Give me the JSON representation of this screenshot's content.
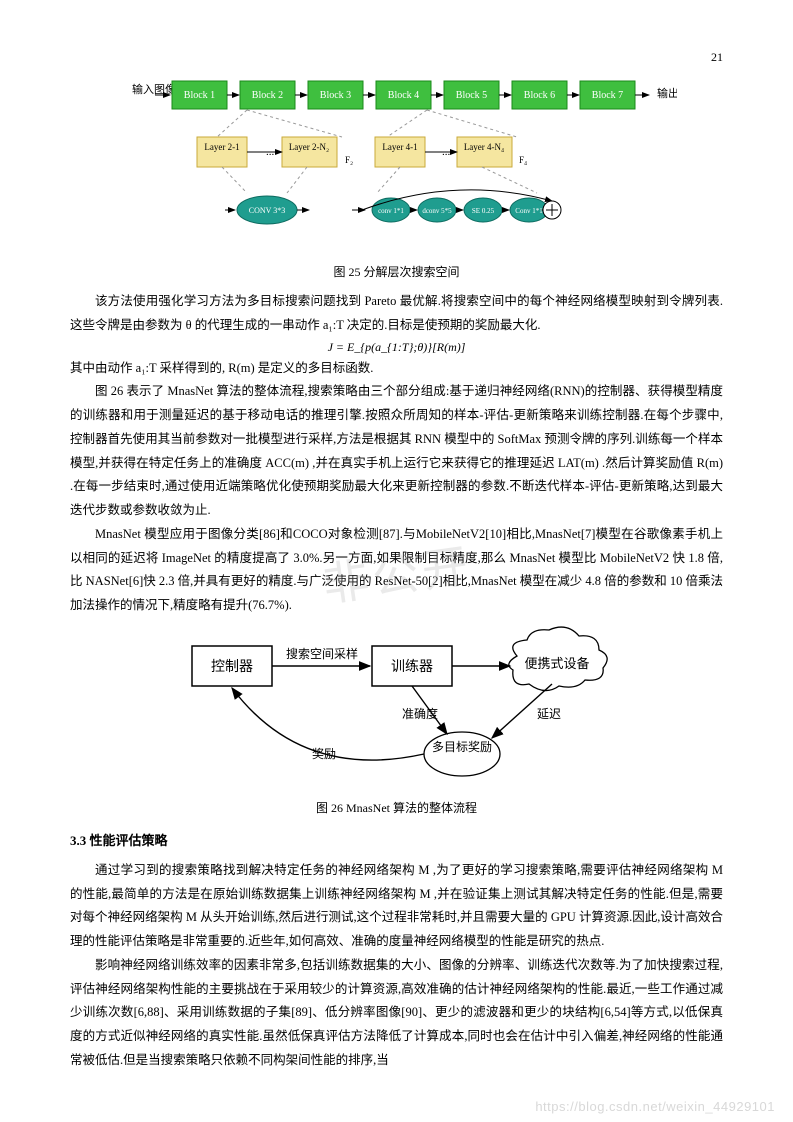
{
  "page_number": "21",
  "fig25": {
    "input_label": "输入图像",
    "output_label": "输出",
    "blocks": [
      "Block 1",
      "Block 2",
      "Block 3",
      "Block 4",
      "Block 5",
      "Block 6",
      "Block 7"
    ],
    "block_fill": "#3fbf3f",
    "block_stroke": "#1a8a1a",
    "layers_group1": [
      "Layer 2-1",
      "Layer 2-N₂"
    ],
    "layers_group2": [
      "Layer 4-1",
      "Layer 4-N₄"
    ],
    "layer_fill": "#f5e6a0",
    "layer_stroke": "#c9a93a",
    "conv_box": "CONV 3*3",
    "ops": [
      "conv 1*1",
      "dconv 5*5",
      "SE 0.25",
      "Conv 1*1"
    ],
    "op_fill": "#1f9d8f",
    "op_text": "#ffffff",
    "f2": "F₂",
    "f4": "F₄",
    "caption": "图 25 分解层次搜索空间"
  },
  "para1": "该方法使用强化学习方法为多目标搜索问题找到 Pareto 最优解.将搜索空间中的每个神经网络模型映射到令牌列表.这些令牌是由参数为 θ 的代理生成的一串动作 a₁:T 决定的.目标是使预期的奖励最大化.",
  "formula1": "J = E_{p(a_{1:T};θ)}[R(m)]",
  "para1b": "其中由动作 a₁:T 采样得到的, R(m) 是定义的多目标函数.",
  "para2": "图 26 表示了 MnasNet 算法的整体流程,搜索策略由三个部分组成:基于递归神经网络(RNN)的控制器、获得模型精度的训练器和用于测量延迟的基于移动电话的推理引擎.按照众所周知的样本-评估-更新策略来训练控制器.在每个步骤中,控制器首先使用其当前参数对一批模型进行采样,方法是根据其 RNN 模型中的 SoftMax 预测令牌的序列.训练每一个样本模型,并获得在特定任务上的准确度 ACC(m) ,并在真实手机上运行它来获得它的推理延迟 LAT(m) .然后计算奖励值 R(m) .在每一步结束时,通过使用近端策略优化使预期奖励最大化来更新控制器的参数.不断迭代样本-评估-更新策略,达到最大迭代步数或参数收敛为止.",
  "para3": "MnasNet 模型应用于图像分类[86]和COCO对象检测[87].与MobileNetV2[10]相比,MnasNet[7]模型在谷歌像素手机上以相同的延迟将 ImageNet 的精度提高了 3.0%.另一方面,如果限制目标精度,那么 MnasNet 模型比 MobileNetV2 快 1.8 倍,比 NASNet[6]快 2.3 倍,并具有更好的精度.与广泛使用的 ResNet-50[2]相比,MnasNet 模型在减少 4.8 倍的参数和 10 倍乘法加法操作的情况下,精度略有提升(76.7%).",
  "fig26": {
    "controller": "控制器",
    "trainer": "训练器",
    "device": "便携式设备",
    "reward_node": "多目标奖励",
    "edge_sample": "搜索空间采样",
    "edge_acc": "准确度",
    "edge_lat": "延迟",
    "edge_reward": "奖励",
    "caption": "图 26 MnasNet 算法的整体流程",
    "box_stroke": "#000000",
    "text_color": "#000000"
  },
  "section33": "3.3  性能评估策略",
  "para4": "通过学习到的搜索策略找到解决特定任务的神经网络架构 M ,为了更好的学习搜索策略,需要评估神经网络架构 M 的性能,最简单的方法是在原始训练数据集上训练神经网络架构 M ,并在验证集上测试其解决特定任务的性能.但是,需要对每个神经网络架构 M 从头开始训练,然后进行测试,这个过程非常耗时,并且需要大量的 GPU 计算资源.因此,设计高效合理的性能评估策略是非常重要的.近些年,如何高效、准确的度量神经网络模型的性能是研究的热点.",
  "para5": "影响神经网络训练效率的因素非常多,包括训练数据集的大小、图像的分辨率、训练迭代次数等.为了加快搜索过程,评估神经网络架构性能的主要挑战在于采用较少的计算资源,高效准确的估计神经网络架构的性能.最近,一些工作通过减少训练次数[6,88]、采用训练数据的子集[89]、低分辨率图像[90]、更少的滤波器和更少的块结构[6,54]等方式,以低保真度的方式近似神经网络的真实性能.虽然低保真评估方法降低了计算成本,同时也会在估计中引入偏差,神经网络的性能通常被低估.但是当搜索策略只依赖不同构架间性能的排序,当",
  "watermark_center": "非公开",
  "watermark_corner": "https://blog.csdn.net/weixin_44929101"
}
